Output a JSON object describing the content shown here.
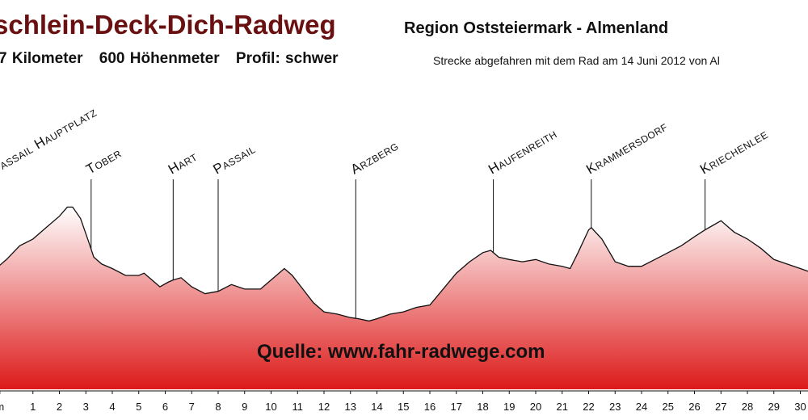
{
  "header": {
    "title": "schlein-Deck-Dich-Radweg",
    "region": "Region Oststeiermark - Almenland",
    "distance": "7 Kilometer",
    "elevation": "600 Höhenmeter",
    "profile": "Profil: schwer",
    "note": "Strecke abgefahren mit dem Rad am 14 Juni 2012 von Al"
  },
  "watermark": "Quelle: www.fahr-radwege.com",
  "chart_data": {
    "type": "area",
    "xlabel": "",
    "ylabel": "",
    "x_ticks": [
      "m",
      "1",
      "2",
      "3",
      "4",
      "5",
      "6",
      "7",
      "8",
      "9",
      "10",
      "11",
      "12",
      "13",
      "14",
      "15",
      "16",
      "17",
      "18",
      "19",
      "20",
      "21",
      "22",
      "23",
      "24",
      "25",
      "26",
      "27",
      "28",
      "29",
      "30"
    ],
    "xlim": [
      -0.5,
      30.8
    ],
    "ylim": [
      0,
      100
    ],
    "grid": false,
    "fill_top_color": "#ffffff",
    "fill_bottom_color": "#dd1a1a",
    "line_color": "#111111",
    "profile": [
      [
        -0.5,
        52
      ],
      [
        0,
        57
      ],
      [
        0.5,
        63
      ],
      [
        1,
        66
      ],
      [
        1.5,
        71
      ],
      [
        2,
        76
      ],
      [
        2.3,
        80
      ],
      [
        2.5,
        80
      ],
      [
        2.8,
        75
      ],
      [
        3.1,
        65
      ],
      [
        3.3,
        58
      ],
      [
        3.6,
        55
      ],
      [
        4,
        53
      ],
      [
        4.5,
        50
      ],
      [
        5,
        50
      ],
      [
        5.2,
        51
      ],
      [
        5.5,
        48
      ],
      [
        5.8,
        45
      ],
      [
        6.1,
        47
      ],
      [
        6.3,
        48
      ],
      [
        6.6,
        49
      ],
      [
        7,
        45
      ],
      [
        7.5,
        42
      ],
      [
        8,
        43
      ],
      [
        8.5,
        46
      ],
      [
        9,
        44
      ],
      [
        9.6,
        44
      ],
      [
        10,
        48
      ],
      [
        10.5,
        53
      ],
      [
        10.8,
        50
      ],
      [
        11.2,
        44
      ],
      [
        11.6,
        38
      ],
      [
        12,
        34
      ],
      [
        12.5,
        33
      ],
      [
        13,
        31.5
      ],
      [
        13.3,
        31
      ],
      [
        13.7,
        30
      ],
      [
        14,
        31
      ],
      [
        14.5,
        33
      ],
      [
        15,
        34
      ],
      [
        15.5,
        36
      ],
      [
        16,
        37
      ],
      [
        16.5,
        44
      ],
      [
        17,
        51
      ],
      [
        17.5,
        56
      ],
      [
        18,
        60
      ],
      [
        18.3,
        61
      ],
      [
        18.6,
        58
      ],
      [
        19,
        57
      ],
      [
        19.5,
        56
      ],
      [
        20,
        57
      ],
      [
        20.5,
        55
      ],
      [
        21,
        54
      ],
      [
        21.3,
        53
      ],
      [
        21.6,
        60
      ],
      [
        22,
        70
      ],
      [
        22.1,
        71
      ],
      [
        22.5,
        66
      ],
      [
        23,
        56
      ],
      [
        23.5,
        54
      ],
      [
        24,
        54
      ],
      [
        24.5,
        57
      ],
      [
        25,
        60
      ],
      [
        25.5,
        63
      ],
      [
        26,
        67
      ],
      [
        26.4,
        70
      ],
      [
        26.7,
        72
      ],
      [
        27,
        74
      ],
      [
        27.5,
        69
      ],
      [
        28,
        66
      ],
      [
        28.5,
        62
      ],
      [
        29,
        57
      ],
      [
        29.5,
        55
      ],
      [
        30,
        53
      ],
      [
        30.5,
        51
      ],
      [
        30.8,
        50
      ]
    ],
    "annotations": [
      {
        "label": "Passail Hauptplatz",
        "x": -0.4
      },
      {
        "label": "Tober",
        "x": 3.2
      },
      {
        "label": "Hart",
        "x": 6.3
      },
      {
        "label": "Passail",
        "x": 8.0
      },
      {
        "label": "Arzberg",
        "x": 13.2
      },
      {
        "label": "Haufenreith",
        "x": 18.4
      },
      {
        "label": "Krammersdorf",
        "x": 22.1
      },
      {
        "label": "Kriechenlee",
        "x": 26.4
      }
    ]
  }
}
